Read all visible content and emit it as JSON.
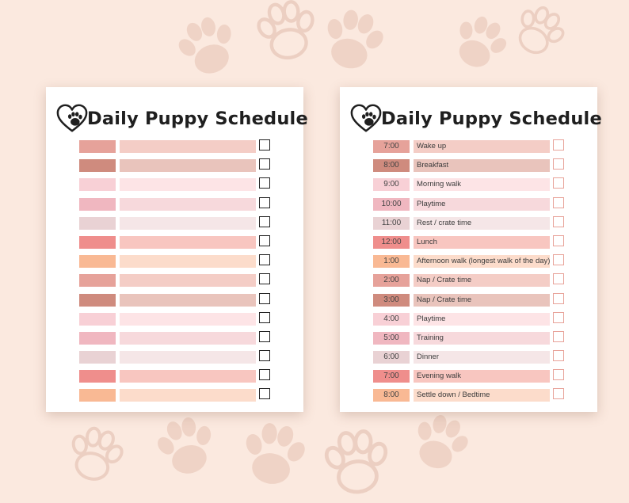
{
  "left_sheet": {
    "title": "Daily Puppy Schedule",
    "rows": [
      {
        "time": "",
        "activity": "",
        "time_color": "#e6a29a",
        "bar_color": "#f4cdc6"
      },
      {
        "time": "",
        "activity": "",
        "time_color": "#cf8b7e",
        "bar_color": "#e9c4bc"
      },
      {
        "time": "",
        "activity": "",
        "time_color": "#f8d0d6",
        "bar_color": "#fde4e6"
      },
      {
        "time": "",
        "activity": "",
        "time_color": "#f0b7c0",
        "bar_color": "#f7d9dc"
      },
      {
        "time": "",
        "activity": "",
        "time_color": "#e9d2d4",
        "bar_color": "#f5e6e7"
      },
      {
        "time": "",
        "activity": "",
        "time_color": "#ef8e8c",
        "bar_color": "#f8c6c0"
      },
      {
        "time": "",
        "activity": "",
        "time_color": "#f9b994",
        "bar_color": "#fcdccb"
      },
      {
        "time": "",
        "activity": "",
        "time_color": "#e6a29a",
        "bar_color": "#f4cdc6"
      },
      {
        "time": "",
        "activity": "",
        "time_color": "#cf8b7e",
        "bar_color": "#e9c4bc"
      },
      {
        "time": "",
        "activity": "",
        "time_color": "#f8d0d6",
        "bar_color": "#fde4e6"
      },
      {
        "time": "",
        "activity": "",
        "time_color": "#f0b7c0",
        "bar_color": "#f7d9dc"
      },
      {
        "time": "",
        "activity": "",
        "time_color": "#e9d2d4",
        "bar_color": "#f5e6e7"
      },
      {
        "time": "",
        "activity": "",
        "time_color": "#ef8e8c",
        "bar_color": "#f8c6c0"
      },
      {
        "time": "",
        "activity": "",
        "time_color": "#f9b994",
        "bar_color": "#fcdccb"
      }
    ]
  },
  "right_sheet": {
    "title": "Daily Puppy Schedule",
    "rows": [
      {
        "time": "7:00",
        "activity": "Wake up",
        "time_color": "#e6a29a",
        "bar_color": "#f4cdc6"
      },
      {
        "time": "8:00",
        "activity": "Breakfast",
        "time_color": "#cf8b7e",
        "bar_color": "#e9c4bc"
      },
      {
        "time": "9:00",
        "activity": "Morning walk",
        "time_color": "#f8d0d6",
        "bar_color": "#fde4e6"
      },
      {
        "time": "10:00",
        "activity": "Playtime",
        "time_color": "#f0b7c0",
        "bar_color": "#f7d9dc"
      },
      {
        "time": "11:00",
        "activity": "Rest / crate time",
        "time_color": "#e9d2d4",
        "bar_color": "#f5e6e7"
      },
      {
        "time": "12:00",
        "activity": "Lunch",
        "time_color": "#ef8e8c",
        "bar_color": "#f8c6c0"
      },
      {
        "time": "1:00",
        "activity": "Afternoon walk (longest walk of the day)",
        "time_color": "#f9b994",
        "bar_color": "#fcdccb"
      },
      {
        "time": "2:00",
        "activity": "Nap / Crate time",
        "time_color": "#e6a29a",
        "bar_color": "#f4cdc6"
      },
      {
        "time": "3:00",
        "activity": "Nap / Crate time",
        "time_color": "#cf8b7e",
        "bar_color": "#e9c4bc"
      },
      {
        "time": "4:00",
        "activity": "Playtime",
        "time_color": "#f8d0d6",
        "bar_color": "#fde4e6"
      },
      {
        "time": "5:00",
        "activity": "Training",
        "time_color": "#f0b7c0",
        "bar_color": "#f7d9dc"
      },
      {
        "time": "6:00",
        "activity": "Dinner",
        "time_color": "#e9d2d4",
        "bar_color": "#f5e6e7"
      },
      {
        "time": "7:00",
        "activity": "Evening walk",
        "time_color": "#ef8e8c",
        "bar_color": "#f8c6c0"
      },
      {
        "time": "8:00",
        "activity": "Settle down / Bedtime",
        "time_color": "#f9b994",
        "bar_color": "#fcdccb"
      }
    ]
  },
  "colors": {
    "background": "#fbe9df",
    "paw": "#eecdbd",
    "heart_icon": "#1f1f1f"
  },
  "icons": {
    "logo": "heart-paw-icon",
    "decor": "paw-print-icon"
  }
}
